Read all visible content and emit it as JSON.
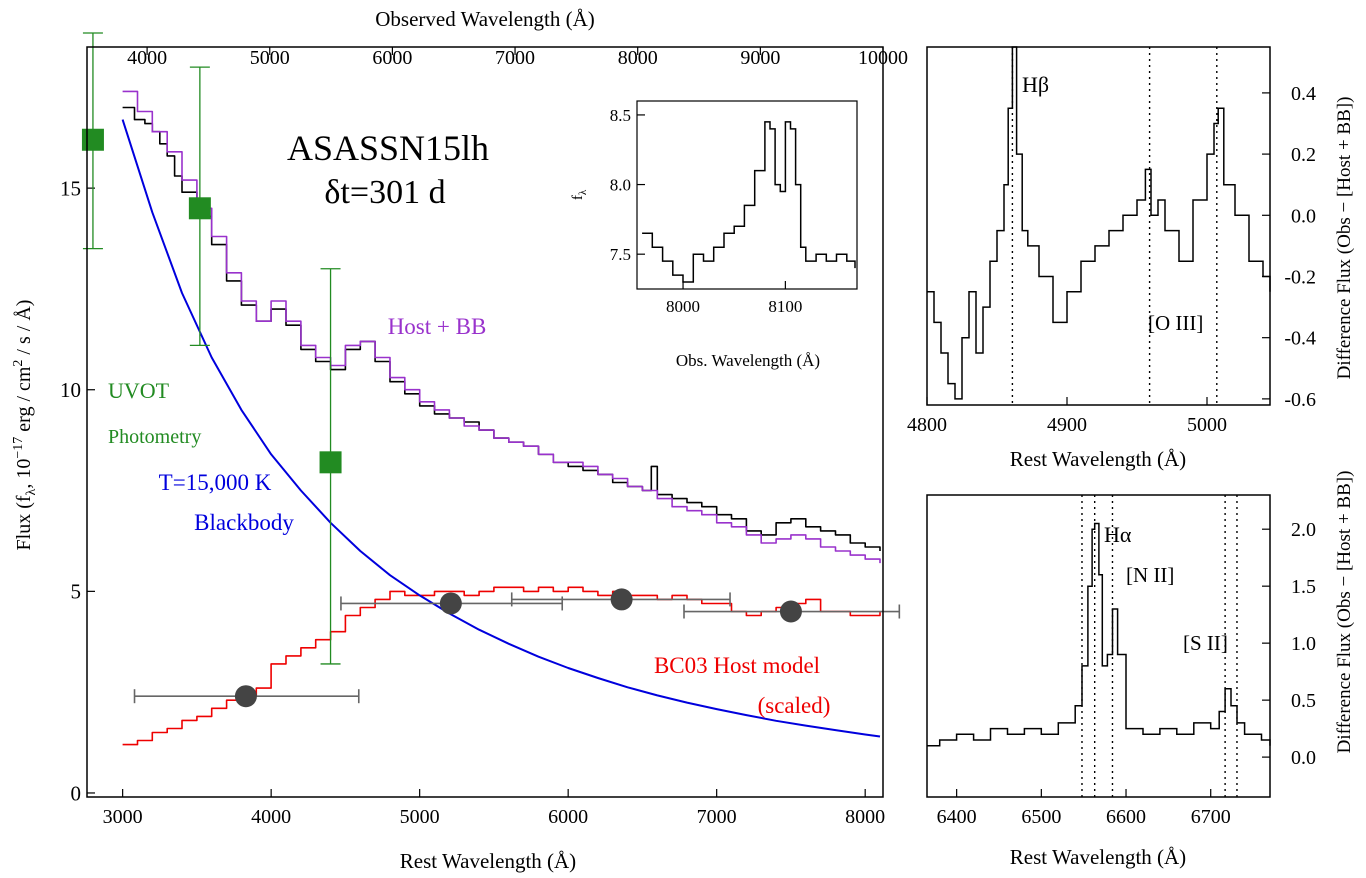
{
  "chart_data": [
    {
      "type": "line",
      "id": "main",
      "xlabel": "Rest Wavelength (Å)",
      "top_xlabel": "Observed Wavelength (Å)",
      "ylabel": "Flux (f_λ, 10^-17 erg / cm^2 / s / Å)",
      "ylabel_parts": [
        "Flux (f",
        "λ",
        ", 10",
        "−17",
        " erg / cm",
        "2",
        " / s / Å)"
      ],
      "xlim": [
        2760,
        8120
      ],
      "ylim": [
        -0.1,
        18.5
      ],
      "top_xlim": [
        3510,
        10000
      ],
      "x_ticks": [
        3000,
        4000,
        5000,
        6000,
        7000,
        8000
      ],
      "y_ticks": [
        0,
        5,
        10,
        15
      ],
      "top_ticks": [
        4000,
        5000,
        6000,
        7000,
        8000,
        9000,
        10000
      ],
      "annotations": {
        "title": "ASASSN15lh",
        "epoch": "δt=301 d",
        "host_bb": "Host + BB",
        "uvot_line1": "UVOT",
        "uvot_line2": "Photometry",
        "bb_line1": "T=15,000 K",
        "bb_line2": "Blackbody",
        "host_line1": "BC03 Host model",
        "host_line2": "(scaled)"
      },
      "series": [
        {
          "name": "Observed spectrum",
          "color": "#000000",
          "x": [
            3000,
            3080,
            3150,
            3200,
            3250,
            3300,
            3350,
            3400,
            3500,
            3600,
            3700,
            3800,
            3900,
            4000,
            4100,
            4200,
            4300,
            4400,
            4500,
            4600,
            4700,
            4800,
            4900,
            5000,
            5100,
            5200,
            5300,
            5400,
            5500,
            5600,
            5700,
            5800,
            5900,
            6000,
            6100,
            6200,
            6300,
            6400,
            6500,
            6560,
            6600,
            6700,
            6800,
            6900,
            7000,
            7100,
            7200,
            7300,
            7400,
            7500,
            7600,
            7700,
            7800,
            7900,
            8000,
            8100
          ],
          "y": [
            17.0,
            16.7,
            16.6,
            16.4,
            16.1,
            15.8,
            15.3,
            14.9,
            14.3,
            13.6,
            12.7,
            12.1,
            11.7,
            12.0,
            11.6,
            11.0,
            10.7,
            10.5,
            11.0,
            11.2,
            10.7,
            10.2,
            9.9,
            9.6,
            9.4,
            9.3,
            9.2,
            9.0,
            8.8,
            8.7,
            8.6,
            8.4,
            8.2,
            8.1,
            8.0,
            7.9,
            7.7,
            7.6,
            7.5,
            8.1,
            7.4,
            7.3,
            7.2,
            7.1,
            6.9,
            6.8,
            6.5,
            6.4,
            6.7,
            6.8,
            6.6,
            6.5,
            6.4,
            6.2,
            6.1,
            6.0
          ]
        },
        {
          "name": "Host + BB",
          "color": "#9932cc",
          "x": [
            3000,
            3100,
            3200,
            3300,
            3400,
            3500,
            3600,
            3700,
            3800,
            3900,
            4000,
            4100,
            4200,
            4300,
            4400,
            4500,
            4600,
            4700,
            4800,
            4900,
            5000,
            5100,
            5200,
            5300,
            5400,
            5500,
            5600,
            5700,
            5800,
            5900,
            6000,
            6100,
            6200,
            6300,
            6400,
            6500,
            6600,
            6700,
            6800,
            6900,
            7000,
            7100,
            7200,
            7300,
            7400,
            7500,
            7600,
            7700,
            7800,
            7900,
            8000,
            8100
          ],
          "y": [
            17.4,
            16.9,
            16.4,
            15.9,
            15.2,
            14.5,
            13.8,
            12.9,
            12.2,
            11.7,
            12.2,
            11.7,
            11.1,
            10.8,
            10.6,
            11.1,
            11.2,
            10.8,
            10.3,
            10.0,
            9.7,
            9.5,
            9.3,
            9.1,
            9.0,
            8.8,
            8.7,
            8.6,
            8.4,
            8.2,
            8.2,
            8.1,
            7.9,
            7.8,
            7.6,
            7.5,
            7.3,
            7.1,
            7.0,
            6.9,
            6.7,
            6.6,
            6.4,
            6.2,
            6.3,
            6.4,
            6.3,
            6.1,
            6.0,
            5.9,
            5.8,
            5.7
          ]
        },
        {
          "name": "T=15,000 K Blackbody",
          "color": "#0000dd",
          "x": [
            3000,
            3200,
            3400,
            3600,
            3800,
            4000,
            4200,
            4400,
            4600,
            4800,
            5000,
            5200,
            5400,
            5600,
            5800,
            6000,
            6200,
            6400,
            6600,
            6800,
            7000,
            7200,
            7400,
            7600,
            7800,
            8000,
            8100
          ],
          "y": [
            16.7,
            14.4,
            12.4,
            10.8,
            9.5,
            8.4,
            7.5,
            6.7,
            6.0,
            5.4,
            4.9,
            4.45,
            4.05,
            3.7,
            3.38,
            3.1,
            2.85,
            2.62,
            2.42,
            2.24,
            2.08,
            1.93,
            1.79,
            1.67,
            1.56,
            1.45,
            1.4
          ]
        },
        {
          "name": "BC03 Host model (scaled)",
          "color": "#ee0000",
          "x": [
            3000,
            3100,
            3200,
            3300,
            3400,
            3500,
            3600,
            3700,
            3800,
            3900,
            4000,
            4100,
            4200,
            4300,
            4400,
            4500,
            4600,
            4700,
            4800,
            4900,
            5000,
            5100,
            5200,
            5300,
            5400,
            5500,
            5600,
            5700,
            5800,
            5900,
            6000,
            6100,
            6200,
            6300,
            6400,
            6500,
            6600,
            6700,
            6800,
            6900,
            7000,
            7100,
            7200,
            7300,
            7400,
            7500,
            7600,
            7700,
            7800,
            7900,
            8000,
            8100
          ],
          "y": [
            1.2,
            1.3,
            1.5,
            1.6,
            1.8,
            1.9,
            2.1,
            2.3,
            2.4,
            2.6,
            3.2,
            3.4,
            3.6,
            3.8,
            4.0,
            4.4,
            4.6,
            4.8,
            5.0,
            4.9,
            4.9,
            5.0,
            5.0,
            4.9,
            5.0,
            5.1,
            5.1,
            5.0,
            5.1,
            5.0,
            5.1,
            5.0,
            4.9,
            5.0,
            4.9,
            4.9,
            4.8,
            4.9,
            4.8,
            4.7,
            4.7,
            4.5,
            4.4,
            4.5,
            4.6,
            4.7,
            4.8,
            4.5,
            4.5,
            4.4,
            4.4,
            4.5
          ]
        }
      ],
      "uvot_photometry": {
        "color": "#228b22",
        "x": [
          2800,
          3520,
          4400
        ],
        "y": [
          16.2,
          14.5,
          8.2
        ],
        "err_low": [
          13.5,
          11.1,
          3.2
        ],
        "err_high": [
          19.0,
          18.0,
          13.0
        ]
      },
      "host_photometry": {
        "color": "#444444",
        "x": [
          3830,
          5210,
          6360,
          7500
        ],
        "y": [
          2.4,
          4.7,
          4.8,
          4.5
        ],
        "x_low": [
          3080,
          4470,
          5620,
          6780
        ],
        "x_high": [
          4590,
          5960,
          7090,
          8230
        ]
      }
    },
    {
      "type": "line",
      "id": "inset",
      "xlabel": "Obs. Wavelength (Å)",
      "ylabel": "f_λ",
      "xlim": [
        7955,
        8170
      ],
      "ylim": [
        7.25,
        8.6
      ],
      "x_ticks": [
        8000,
        8100
      ],
      "y_ticks": [
        7.5,
        8.0,
        8.5
      ],
      "series": [
        {
          "name": "Observed spectrum",
          "color": "#000000",
          "x": [
            7960,
            7970,
            7980,
            7990,
            8000,
            8010,
            8020,
            8030,
            8040,
            8050,
            8060,
            8070,
            8080,
            8085,
            8090,
            8095,
            8100,
            8105,
            8110,
            8115,
            8120,
            8130,
            8140,
            8150,
            8160,
            8168
          ],
          "y": [
            7.65,
            7.55,
            7.45,
            7.35,
            7.3,
            7.5,
            7.45,
            7.55,
            7.65,
            7.7,
            7.85,
            8.1,
            8.45,
            8.4,
            8.0,
            7.95,
            8.45,
            8.4,
            8.0,
            7.55,
            7.45,
            7.5,
            7.45,
            7.5,
            7.45,
            7.4
          ]
        }
      ]
    },
    {
      "type": "line",
      "id": "hbeta",
      "xlabel": "Rest Wavelength (Å)",
      "ylabel": "Difference Flux (Obs − [Host + BB])",
      "xlim": [
        4800,
        5045
      ],
      "ylim": [
        -0.62,
        0.55
      ],
      "x_ticks": [
        4800,
        4900,
        5000
      ],
      "y_ticks": [
        -0.6,
        -0.4,
        -0.2,
        0.0,
        0.2,
        0.4
      ],
      "labels": {
        "hbeta": "Hβ",
        "oiii": "[O III]"
      },
      "marker_lines": [
        4861,
        4959,
        5007
      ],
      "series": [
        {
          "name": "Difference spectrum",
          "color": "#000000",
          "x": [
            4800,
            4805,
            4810,
            4815,
            4820,
            4825,
            4830,
            4835,
            4840,
            4845,
            4850,
            4855,
            4858,
            4861,
            4864,
            4868,
            4872,
            4880,
            4890,
            4900,
            4910,
            4920,
            4930,
            4940,
            4950,
            4956,
            4960,
            4965,
            4970,
            4980,
            4990,
            5000,
            5005,
            5008,
            5012,
            5020,
            5030,
            5040,
            5045
          ],
          "y": [
            -0.25,
            -0.35,
            -0.45,
            -0.55,
            -0.6,
            -0.4,
            -0.25,
            -0.45,
            -0.3,
            -0.15,
            -0.05,
            0.1,
            0.35,
            0.55,
            0.2,
            -0.05,
            -0.1,
            -0.2,
            -0.35,
            -0.25,
            -0.15,
            -0.1,
            -0.05,
            0.0,
            0.05,
            0.15,
            0.0,
            0.05,
            -0.05,
            -0.15,
            0.05,
            0.2,
            0.3,
            0.35,
            0.1,
            0.0,
            -0.15,
            -0.2,
            -0.25
          ]
        }
      ]
    },
    {
      "type": "line",
      "id": "halpha",
      "xlabel": "Rest Wavelength (Å)",
      "ylabel": "Difference Flux (Obs − [Host + BB])",
      "xlim": [
        6365,
        6770
      ],
      "ylim": [
        -0.35,
        2.3
      ],
      "x_ticks": [
        6400,
        6500,
        6600,
        6700
      ],
      "y_ticks": [
        0.0,
        0.5,
        1.0,
        1.5,
        2.0
      ],
      "labels": {
        "halpha": "Hα",
        "nii": "[N II]",
        "sii": "[S II]"
      },
      "marker_lines": [
        6548,
        6563,
        6584,
        6717,
        6731
      ],
      "series": [
        {
          "name": "Difference spectrum",
          "color": "#000000",
          "x": [
            6365,
            6380,
            6400,
            6420,
            6440,
            6460,
            6480,
            6500,
            6520,
            6540,
            6548,
            6555,
            6560,
            6563,
            6568,
            6572,
            6578,
            6584,
            6590,
            6600,
            6620,
            6640,
            6660,
            6680,
            6700,
            6710,
            6717,
            6724,
            6731,
            6740,
            6760,
            6770
          ],
          "y": [
            0.1,
            0.15,
            0.2,
            0.15,
            0.25,
            0.2,
            0.25,
            0.2,
            0.3,
            0.45,
            0.8,
            1.5,
            2.0,
            2.05,
            1.6,
            0.8,
            0.9,
            1.3,
            0.9,
            0.25,
            0.2,
            0.25,
            0.2,
            0.3,
            0.25,
            0.4,
            0.6,
            0.45,
            0.3,
            0.2,
            0.15,
            0.1
          ]
        }
      ]
    }
  ]
}
